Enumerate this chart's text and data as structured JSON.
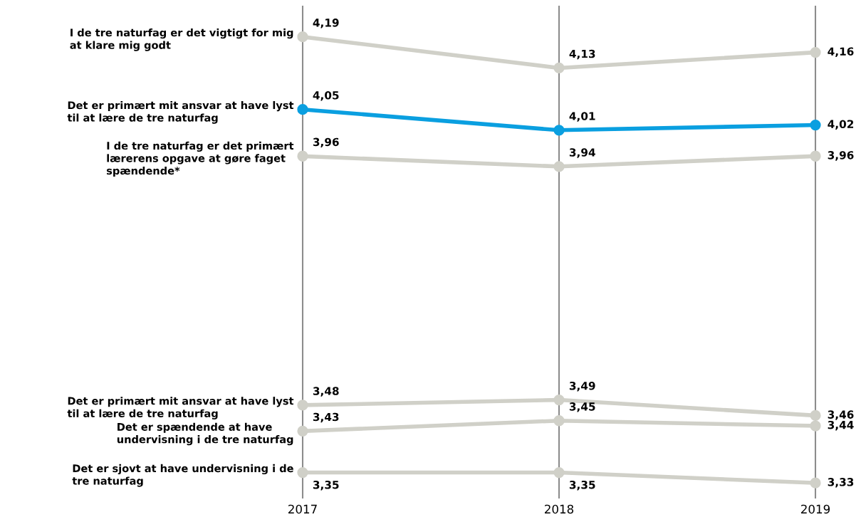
{
  "chart_data": {
    "type": "line",
    "categories": [
      "2017",
      "2018",
      "2019"
    ],
    "ylim": [
      3.3,
      4.25
    ],
    "tick_labels": "x",
    "grid": "x",
    "marker": "circle",
    "data_labels": true,
    "legend": false,
    "series": [
      {
        "name": "I de tre naturfag er det vigtigt for mig\nat klare mig godt",
        "color": "#d0d0c8",
        "values": [
          4.19,
          4.13,
          4.16
        ],
        "value_labels": [
          "4,19",
          "4,13",
          "4,16"
        ]
      },
      {
        "name": "Det er primært mit ansvar at have lyst\ntil at lære de tre naturfag",
        "color": "#0a9fe0",
        "values": [
          4.05,
          4.01,
          4.02
        ],
        "value_labels": [
          "4,05",
          "4,01",
          "4,02"
        ]
      },
      {
        "name": "I de tre naturfag er det primært\nlærerens opgave at gøre faget\nspændende*",
        "color": "#d0d0c8",
        "values": [
          3.96,
          3.94,
          3.96
        ],
        "value_labels": [
          "3,96",
          "3,94",
          "3,96"
        ]
      },
      {
        "name": "Det er primært mit ansvar at have lyst\ntil at lære de tre naturfag",
        "color": "#d0d0c8",
        "values": [
          3.48,
          3.49,
          3.46
        ],
        "value_labels": [
          "3,48",
          "3,49",
          "3,46"
        ]
      },
      {
        "name": "Det er spændende at have\nundervisning i de tre naturfag",
        "color": "#d0d0c8",
        "values": [
          3.43,
          3.45,
          3.44
        ],
        "value_labels": [
          "3,43",
          "3,45",
          "3,44"
        ]
      },
      {
        "name": "Det er sjovt at have undervisning i de\ntre naturfag",
        "color": "#d0d0c8",
        "values": [
          3.35,
          3.35,
          3.33
        ],
        "value_labels": [
          "3,35",
          "3,35",
          "3,33"
        ]
      }
    ]
  }
}
